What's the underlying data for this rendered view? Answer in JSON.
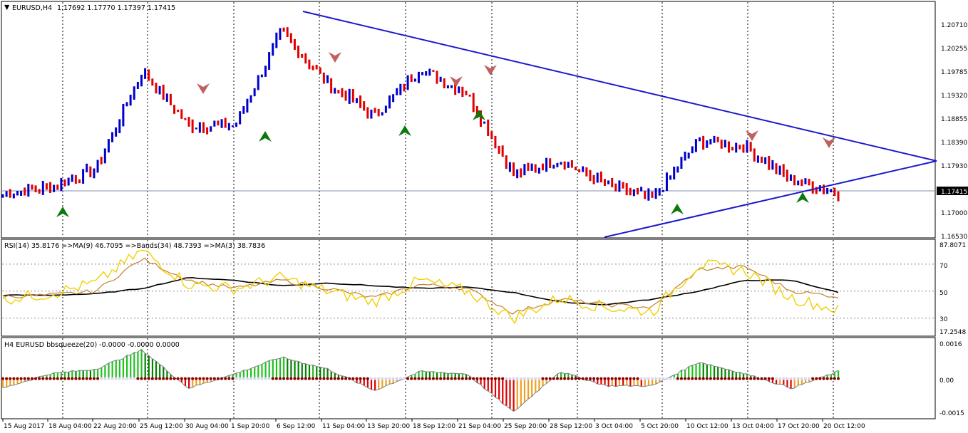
{
  "main_panel": {
    "header_symbol": "EURUSD,H4",
    "header_values": "1.17692 1.17770 1.17397 1.17415",
    "price_ticks": [
      "1.20710",
      "1.20255",
      "1.19785",
      "1.19320",
      "1.18855",
      "1.18390",
      "1.17930",
      "1.17000",
      "1.16530"
    ],
    "current_price": "1.17415",
    "colors": {
      "bull": "#0000cc",
      "bear": "#e00000",
      "trendline": "#1a1acc",
      "buy_arrow": "#0a7a0a",
      "sell_arrow": "#c06060",
      "price_tag_bg": "#000000"
    }
  },
  "rsi_panel": {
    "title": "RSI(14) 35.8176  =>MA(9) 46.7095  =>Bands(34) 48.7393  =>MA(3) 38.7836",
    "ticks": [
      "87.8071",
      "70",
      "50",
      "30",
      "17.2548"
    ]
  },
  "squeeze_panel": {
    "title": "H4 EURUSD bbsqueeze(20) -0.0000 -0.0000 0.0000",
    "ticks": [
      "0.0016",
      "0.00",
      "-0.0015"
    ]
  },
  "time_axis": [
    "15 Aug 2017",
    "18 Aug 04:00",
    "22 Aug 20:00",
    "25 Aug 12:00",
    "30 Aug 04:00",
    "1 Sep 20:00",
    "6 Sep 12:00",
    "11 Sep 04:00",
    "13 Sep 20:00",
    "18 Sep 12:00",
    "21 Sep 04:00",
    "25 Sep 20:00",
    "28 Sep 12:00",
    "3 Oct 04:00",
    "5 Oct 20:00",
    "10 Oct 12:00",
    "13 Oct 04:00",
    "17 Oct 20:00",
    "20 Oct 12:00"
  ],
  "chart_data": {
    "type": "line",
    "symbol": "EURUSD",
    "timeframe": "H4",
    "price_key": [
      {
        "date": "15 Aug 2017",
        "close": 1.174
      },
      {
        "date": "18 Aug 04:00",
        "close": 1.1755
      },
      {
        "date": "22 Aug 20:00",
        "close": 1.179
      },
      {
        "date": "25 Aug 12:00",
        "close": 1.199
      },
      {
        "date": "30 Aug 04:00",
        "close": 1.188
      },
      {
        "date": "1 Sep 20:00",
        "close": 1.188
      },
      {
        "date": "6 Sep 12:00",
        "close": 1.207
      },
      {
        "date": "11 Sep 04:00",
        "close": 1.1965
      },
      {
        "date": "13 Sep 20:00",
        "close": 1.19
      },
      {
        "date": "18 Sep 12:00",
        "close": 1.1995
      },
      {
        "date": "21 Sep 04:00",
        "close": 1.1945
      },
      {
        "date": "25 Sep 20:00",
        "close": 1.178
      },
      {
        "date": "28 Sep 12:00",
        "close": 1.181
      },
      {
        "date": "3 Oct 04:00",
        "close": 1.176
      },
      {
        "date": "5 Oct 20:00",
        "close": 1.173
      },
      {
        "date": "10 Oct 12:00",
        "close": 1.185
      },
      {
        "date": "13 Oct 04:00",
        "close": 1.1835
      },
      {
        "date": "17 Oct 20:00",
        "close": 1.177
      },
      {
        "date": "20 Oct 12:00",
        "close": 1.1741
      }
    ],
    "ylim": [
      1.1653,
      1.211
    ],
    "trendlines": [
      {
        "from": {
          "date": "6 Sep 12:00",
          "price": 1.2125
        },
        "to": {
          "date": "20 Oct 12:00",
          "price": 1.1795
        }
      },
      {
        "from": {
          "date": "3 Oct 04:00",
          "price": 1.1655
        },
        "to": {
          "date": "20 Oct 12:00",
          "price": 1.1795
        }
      }
    ],
    "rsi_ylim": [
      17.2548,
      87.8071
    ],
    "rsi_key": [
      44,
      48,
      56,
      80,
      55,
      52,
      60,
      50,
      42,
      58,
      50,
      30,
      45,
      38,
      35,
      70,
      65,
      45,
      36
    ],
    "rsi_ma_key": [
      46,
      47,
      50,
      74,
      58,
      52,
      58,
      52,
      45,
      55,
      52,
      34,
      44,
      40,
      38,
      66,
      68,
      50,
      46
    ],
    "rsi_bands_key": [
      47,
      47,
      48,
      52,
      60,
      58,
      54,
      56,
      54,
      52,
      53,
      49,
      42,
      40,
      44,
      50,
      58,
      58,
      49
    ],
    "squeeze_ylim": [
      -0.0015,
      0.0016
    ],
    "squeeze_key": [
      -0.0004,
      0.0002,
      0.0004,
      0.0012,
      -0.0004,
      0.0002,
      0.0009,
      0.0004,
      -0.0005,
      0.0003,
      0.0002,
      -0.0014,
      0.0003,
      -0.0003,
      -0.0003,
      0.0007,
      0.0002,
      -0.0004,
      0.0003
    ],
    "ma_line_color": "#000000",
    "rsi_line_color": "#f0d000",
    "rsi_ma_color": "#c08030"
  }
}
